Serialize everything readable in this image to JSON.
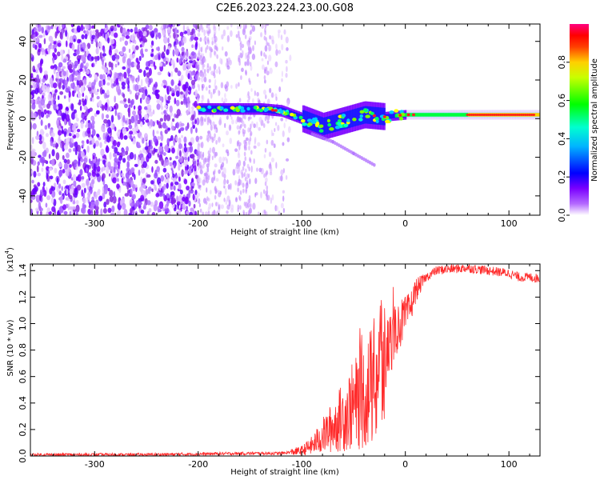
{
  "title": "C2E6.2023.224.23.00.G08",
  "chart_data": [
    {
      "type": "heatmap",
      "title": "C2E6.2023.224.23.00.G08",
      "xlabel": "Height of straight line (km)",
      "ylabel": "Frequency (Hz)",
      "xlim": [
        -362,
        130
      ],
      "ylim": [
        -50,
        49
      ],
      "x_ticks": [
        -300,
        -200,
        -100,
        0,
        100
      ],
      "y_ticks": [
        -40,
        -20,
        0,
        20,
        40
      ],
      "colorbar": {
        "label": "Normalized spectral amplitude",
        "range": [
          0,
          1
        ],
        "ticks": [
          0.0,
          0.2,
          0.4,
          0.6,
          0.8
        ],
        "colormap": [
          "#ffffff",
          "#7a00ff",
          "#0000ff",
          "#00ffff",
          "#00ff00",
          "#ffff00",
          "#ff0000",
          "#ff0080"
        ]
      },
      "features": {
        "noise_region_x": [
          -362,
          -200
        ],
        "sparse_region_x": [
          -200,
          -110
        ],
        "signal_band_x": [
          -200,
          130
        ],
        "signal_frequency_hz": [
          [
            -200,
            5
          ],
          [
            -170,
            5
          ],
          [
            -140,
            5
          ],
          [
            -120,
            4
          ],
          [
            -100,
            0
          ],
          [
            -80,
            -4
          ],
          [
            -60,
            -1
          ],
          [
            -40,
            2
          ],
          [
            -20,
            1
          ],
          [
            0,
            2
          ],
          [
            50,
            2
          ],
          [
            100,
            2
          ],
          [
            130,
            2
          ]
        ],
        "descending_branch": [
          [
            -90,
            -8
          ],
          [
            -70,
            -12
          ],
          [
            -50,
            -18
          ],
          [
            -30,
            -24
          ]
        ]
      }
    },
    {
      "type": "line",
      "xlabel": "Height of straight line (km)",
      "ylabel": "SNR (10 * v/v)",
      "y_multiplier": "(x10",
      "y_multiplier_exp": "4",
      "y_multiplier_close": ")",
      "xlim": [
        -362,
        130
      ],
      "ylim": [
        0,
        1.45
      ],
      "x_ticks": [
        -300,
        -200,
        -100,
        0,
        100
      ],
      "y_ticks": [
        0.0,
        0.2,
        0.4,
        0.6,
        0.8,
        1.0,
        1.2,
        1.4
      ],
      "series": [
        {
          "color": "#ff2a2a",
          "x": [
            -362,
            -300,
            -250,
            -200,
            -150,
            -120,
            -100,
            -90,
            -80,
            -70,
            -60,
            -50,
            -40,
            -30,
            -25,
            -20,
            -15,
            -10,
            -5,
            0,
            5,
            10,
            20,
            30,
            40,
            60,
            80,
            100,
            110,
            120,
            130
          ],
          "values": [
            0.01,
            0.01,
            0.01,
            0.015,
            0.02,
            0.02,
            0.04,
            0.08,
            0.15,
            0.22,
            0.3,
            0.38,
            0.45,
            0.55,
            0.7,
            0.72,
            0.85,
            0.95,
            1.0,
            1.05,
            1.12,
            1.25,
            1.35,
            1.4,
            1.41,
            1.42,
            1.4,
            1.38,
            1.35,
            1.35,
            1.34
          ]
        }
      ]
    }
  ]
}
